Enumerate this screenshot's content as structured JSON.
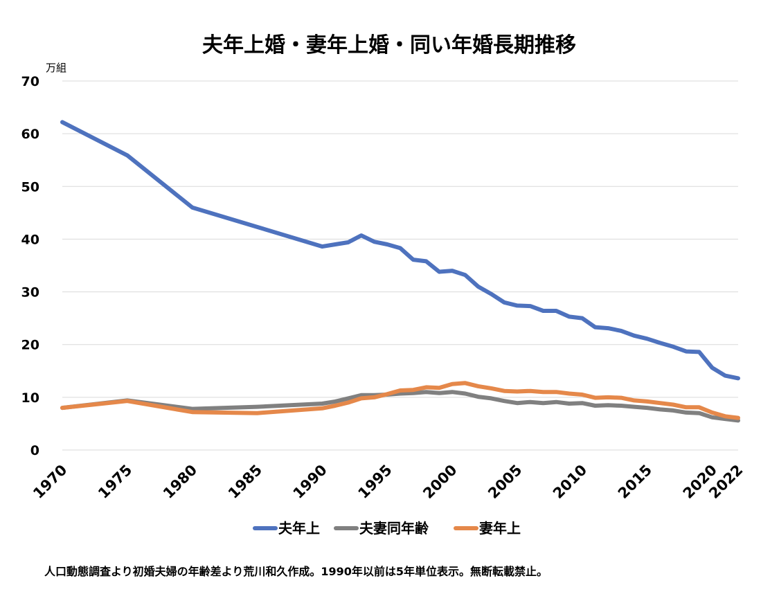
{
  "chart_data": {
    "type": "line",
    "title": "夫年上婚・妻年上婚・同い年婚長期推移",
    "unit_label": "万組",
    "ylim": [
      0,
      70
    ],
    "y_ticks": [
      "0",
      "10",
      "20",
      "30",
      "40",
      "50",
      "60",
      "70"
    ],
    "xlim": [
      1970,
      2022
    ],
    "x_ticks": [
      "1970",
      "1975",
      "1980",
      "1985",
      "1990",
      "1995",
      "2000",
      "2005",
      "2010",
      "2015",
      "2020",
      "2022"
    ],
    "grid": true,
    "legend_position": "bottom",
    "series": [
      {
        "name": "夫年上",
        "color": "#4E72BE",
        "points": [
          [
            1970,
            62.2
          ],
          [
            1975,
            55.9
          ],
          [
            1980,
            46.0
          ],
          [
            1985,
            42.3
          ],
          [
            1990,
            38.6
          ],
          [
            1991,
            39.0
          ],
          [
            1992,
            39.4
          ],
          [
            1993,
            40.7
          ],
          [
            1994,
            39.5
          ],
          [
            1995,
            39.0
          ],
          [
            1996,
            38.3
          ],
          [
            1997,
            36.1
          ],
          [
            1998,
            35.8
          ],
          [
            1999,
            33.8
          ],
          [
            2000,
            34.0
          ],
          [
            2001,
            33.2
          ],
          [
            2002,
            31.0
          ],
          [
            2003,
            29.6
          ],
          [
            2004,
            28.0
          ],
          [
            2005,
            27.4
          ],
          [
            2006,
            27.3
          ],
          [
            2007,
            26.4
          ],
          [
            2008,
            26.4
          ],
          [
            2009,
            25.3
          ],
          [
            2010,
            25.0
          ],
          [
            2011,
            23.3
          ],
          [
            2012,
            23.1
          ],
          [
            2013,
            22.6
          ],
          [
            2014,
            21.7
          ],
          [
            2015,
            21.1
          ],
          [
            2016,
            20.3
          ],
          [
            2017,
            19.6
          ],
          [
            2018,
            18.7
          ],
          [
            2019,
            18.6
          ],
          [
            2020,
            15.6
          ],
          [
            2021,
            14.1
          ],
          [
            2022,
            13.6
          ]
        ]
      },
      {
        "name": "夫妻同年齢",
        "color": "#808080",
        "points": [
          [
            1970,
            8.0
          ],
          [
            1975,
            9.4
          ],
          [
            1980,
            7.8
          ],
          [
            1985,
            8.2
          ],
          [
            1990,
            8.8
          ],
          [
            1991,
            9.2
          ],
          [
            1992,
            9.8
          ],
          [
            1993,
            10.4
          ],
          [
            1994,
            10.4
          ],
          [
            1995,
            10.5
          ],
          [
            1996,
            10.7
          ],
          [
            1997,
            10.8
          ],
          [
            1998,
            11.0
          ],
          [
            1999,
            10.8
          ],
          [
            2000,
            11.0
          ],
          [
            2001,
            10.7
          ],
          [
            2002,
            10.1
          ],
          [
            2003,
            9.8
          ],
          [
            2004,
            9.3
          ],
          [
            2005,
            8.9
          ],
          [
            2006,
            9.1
          ],
          [
            2007,
            8.9
          ],
          [
            2008,
            9.1
          ],
          [
            2009,
            8.8
          ],
          [
            2010,
            8.9
          ],
          [
            2011,
            8.4
          ],
          [
            2012,
            8.5
          ],
          [
            2013,
            8.4
          ],
          [
            2014,
            8.2
          ],
          [
            2015,
            8.0
          ],
          [
            2016,
            7.7
          ],
          [
            2017,
            7.5
          ],
          [
            2018,
            7.1
          ],
          [
            2019,
            7.0
          ],
          [
            2020,
            6.2
          ],
          [
            2021,
            5.9
          ],
          [
            2022,
            5.6
          ]
        ]
      },
      {
        "name": "妻年上",
        "color": "#E5884A",
        "points": [
          [
            1970,
            8.0
          ],
          [
            1975,
            9.3
          ],
          [
            1980,
            7.2
          ],
          [
            1985,
            7.0
          ],
          [
            1990,
            7.9
          ],
          [
            1991,
            8.4
          ],
          [
            1992,
            9.0
          ],
          [
            1993,
            9.8
          ],
          [
            1994,
            10.0
          ],
          [
            1995,
            10.6
          ],
          [
            1996,
            11.3
          ],
          [
            1997,
            11.4
          ],
          [
            1998,
            11.9
          ],
          [
            1999,
            11.8
          ],
          [
            2000,
            12.5
          ],
          [
            2001,
            12.7
          ],
          [
            2002,
            12.1
          ],
          [
            2003,
            11.7
          ],
          [
            2004,
            11.2
          ],
          [
            2005,
            11.1
          ],
          [
            2006,
            11.2
          ],
          [
            2007,
            11.0
          ],
          [
            2008,
            11.0
          ],
          [
            2009,
            10.7
          ],
          [
            2010,
            10.5
          ],
          [
            2011,
            9.9
          ],
          [
            2012,
            10.0
          ],
          [
            2013,
            9.9
          ],
          [
            2014,
            9.4
          ],
          [
            2015,
            9.2
          ],
          [
            2016,
            8.9
          ],
          [
            2017,
            8.6
          ],
          [
            2018,
            8.1
          ],
          [
            2019,
            8.1
          ],
          [
            2020,
            7.1
          ],
          [
            2021,
            6.4
          ],
          [
            2022,
            6.1
          ]
        ]
      }
    ]
  },
  "footnote": "人口動態調査より初婚夫婦の年齢差より荒川和久作成。1990年以前は5年単位表示。無断転載禁止。"
}
